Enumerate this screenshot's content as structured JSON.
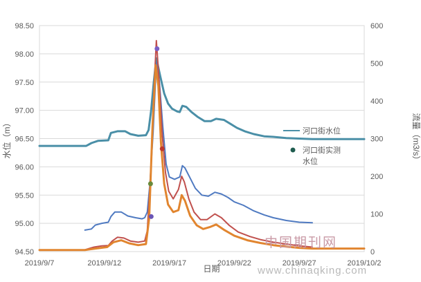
{
  "chart_data": {
    "type": "line",
    "title": "",
    "xlabel": "日期",
    "ylabel_left": "水位（m）",
    "ylabel_right": "流量（m3/s）",
    "xlim": [
      "2019-09-07",
      "2019-10-02"
    ],
    "x_tick_labels": [
      "2019/9/7",
      "2019/9/12",
      "2019/9/17",
      "2019/9/22",
      "2019/9/27",
      "2019/10/2"
    ],
    "y_left": {
      "range": [
        94.5,
        98.5
      ],
      "ticks": [
        "94.50",
        "95.00",
        "95.50",
        "96.00",
        "96.50",
        "97.00",
        "97.50",
        "98.00",
        "98.50"
      ]
    },
    "y_right": {
      "range": [
        0,
        600
      ],
      "ticks": [
        "0",
        "100",
        "200",
        "300",
        "400",
        "500",
        "600"
      ]
    },
    "grid": "horizontal",
    "legend": {
      "placement": "right",
      "items": [
        {
          "label": "河口街水位",
          "marker": "line",
          "color": "#4a8fa7"
        },
        {
          "label_lines": [
            "河口街实测",
            "水位"
          ],
          "marker": "dot",
          "color": "#1f5c4f"
        }
      ]
    },
    "series": [
      {
        "name": "河口街水位",
        "color": "#4a8fa7",
        "axis": "left",
        "width": 3,
        "points": [
          [
            "2019-09-07",
            96.37
          ],
          [
            "2019-09-10",
            96.37
          ],
          [
            "2019-09-10.6",
            96.37
          ],
          [
            "2019-09-11",
            96.42
          ],
          [
            "2019-09-11.5",
            96.46
          ],
          [
            "2019-09-12.3",
            96.47
          ],
          [
            "2019-09-12.5",
            96.6
          ],
          [
            "2019-09-13",
            96.63
          ],
          [
            "2019-09-13.6",
            96.63
          ],
          [
            "2019-09-14",
            96.58
          ],
          [
            "2019-09-14.6",
            96.55
          ],
          [
            "2019-09-15.2",
            96.56
          ],
          [
            "2019-09-15.4",
            96.65
          ],
          [
            "2019-09-15.6",
            97.0
          ],
          [
            "2019-09-15.8",
            97.5
          ],
          [
            "2019-09-16",
            97.92
          ],
          [
            "2019-09-16.3",
            97.6
          ],
          [
            "2019-09-16.6",
            97.3
          ],
          [
            "2019-09-16.9",
            97.12
          ],
          [
            "2019-09-17.2",
            97.03
          ],
          [
            "2019-09-17.6",
            96.98
          ],
          [
            "2019-09-17.8",
            96.97
          ],
          [
            "2019-09-18",
            97.08
          ],
          [
            "2019-09-18.3",
            97.06
          ],
          [
            "2019-09-18.7",
            96.97
          ],
          [
            "2019-09-19.2",
            96.88
          ],
          [
            "2019-09-19.7",
            96.81
          ],
          [
            "2019-09-20.2",
            96.81
          ],
          [
            "2019-09-20.6",
            96.85
          ],
          [
            "2019-09-21.2",
            96.83
          ],
          [
            "2019-09-21.7",
            96.76
          ],
          [
            "2019-09-22.2",
            96.69
          ],
          [
            "2019-09-22.8",
            96.63
          ],
          [
            "2019-09-23.5",
            96.58
          ],
          [
            "2019-09-24.3",
            96.54
          ],
          [
            "2019-09-25",
            96.53
          ],
          [
            "2019-09-26",
            96.51
          ],
          [
            "2019-09-27",
            96.5
          ],
          [
            "2019-09-28",
            96.49
          ],
          [
            "2019-10-02",
            96.49
          ]
        ]
      },
      {
        "name": "",
        "color": "#4f7ac1",
        "axis": "left",
        "width": 2,
        "points": [
          [
            "2019-09-10.5",
            94.88
          ],
          [
            "2019-09-11",
            94.9
          ],
          [
            "2019-09-11.3",
            94.97
          ],
          [
            "2019-09-11.8",
            95.0
          ],
          [
            "2019-09-12.3",
            95.02
          ],
          [
            "2019-09-12.5",
            95.12
          ],
          [
            "2019-09-12.8",
            95.2
          ],
          [
            "2019-09-13.3",
            95.2
          ],
          [
            "2019-09-13.8",
            95.13
          ],
          [
            "2019-09-14.4",
            95.1
          ],
          [
            "2019-09-14.9",
            95.08
          ],
          [
            "2019-09-15.1",
            95.1
          ],
          [
            "2019-09-15.3",
            95.2
          ],
          [
            "2019-09-15.5",
            95.7
          ],
          [
            "2019-09-15.75",
            96.6
          ],
          [
            "2019-09-15.95",
            97.6
          ],
          [
            "2019-09-16.05",
            97.85
          ],
          [
            "2019-09-16.25",
            97.45
          ],
          [
            "2019-09-16.5",
            96.7
          ],
          [
            "2019-09-16.75",
            96.05
          ],
          [
            "2019-09-17",
            95.82
          ],
          [
            "2019-09-17.4",
            95.78
          ],
          [
            "2019-09-17.8",
            95.82
          ],
          [
            "2019-09-18",
            96.02
          ],
          [
            "2019-09-18.2",
            95.98
          ],
          [
            "2019-09-18.6",
            95.8
          ],
          [
            "2019-09-19",
            95.62
          ],
          [
            "2019-09-19.5",
            95.5
          ],
          [
            "2019-09-20",
            95.48
          ],
          [
            "2019-09-20.5",
            95.55
          ],
          [
            "2019-09-21",
            95.52
          ],
          [
            "2019-09-21.5",
            95.46
          ],
          [
            "2019-09-22",
            95.38
          ],
          [
            "2019-09-22.7",
            95.32
          ],
          [
            "2019-09-23.5",
            95.22
          ],
          [
            "2019-09-24.3",
            95.15
          ],
          [
            "2019-09-25",
            95.1
          ],
          [
            "2019-09-26",
            95.05
          ],
          [
            "2019-09-27",
            95.02
          ],
          [
            "2019-09-28",
            95.01
          ]
        ]
      },
      {
        "name": "",
        "color": "#c0504d",
        "axis": "right",
        "width": 2,
        "points": [
          [
            "2019-09-10.5",
            5
          ],
          [
            "2019-09-11.2",
            12
          ],
          [
            "2019-09-11.8",
            15
          ],
          [
            "2019-09-12.3",
            16
          ],
          [
            "2019-09-12.6",
            28
          ],
          [
            "2019-09-13",
            38
          ],
          [
            "2019-09-13.5",
            36
          ],
          [
            "2019-09-14",
            28
          ],
          [
            "2019-09-14.6",
            25
          ],
          [
            "2019-09-15.1",
            28
          ],
          [
            "2019-09-15.3",
            55
          ],
          [
            "2019-09-15.55",
            200
          ],
          [
            "2019-09-15.8",
            420
          ],
          [
            "2019-09-16",
            560
          ],
          [
            "2019-09-16.2",
            460
          ],
          [
            "2019-09-16.45",
            310
          ],
          [
            "2019-09-16.7",
            210
          ],
          [
            "2019-09-16.95",
            160
          ],
          [
            "2019-09-17.3",
            140
          ],
          [
            "2019-09-17.7",
            165
          ],
          [
            "2019-09-17.95",
            200
          ],
          [
            "2019-09-18.15",
            185
          ],
          [
            "2019-09-18.5",
            140
          ],
          [
            "2019-09-18.9",
            105
          ],
          [
            "2019-09-19.4",
            85
          ],
          [
            "2019-09-19.9",
            85
          ],
          [
            "2019-09-20.5",
            100
          ],
          [
            "2019-09-21",
            90
          ],
          [
            "2019-09-21.6",
            70
          ],
          [
            "2019-09-22.3",
            52
          ],
          [
            "2019-09-23.2",
            40
          ],
          [
            "2019-09-24",
            32
          ],
          [
            "2019-09-25",
            25
          ],
          [
            "2019-09-26",
            20
          ],
          [
            "2019-09-27",
            15
          ],
          [
            "2019-09-28",
            12
          ]
        ]
      },
      {
        "name": "",
        "color": "#e1852f",
        "axis": "right",
        "width": 3,
        "points": [
          [
            "2019-09-07",
            4
          ],
          [
            "2019-09-10.5",
            4
          ],
          [
            "2019-09-11.3",
            8
          ],
          [
            "2019-09-12.2",
            12
          ],
          [
            "2019-09-12.7",
            25
          ],
          [
            "2019-09-13.3",
            30
          ],
          [
            "2019-09-13.9",
            22
          ],
          [
            "2019-09-14.6",
            17
          ],
          [
            "2019-09-15.2",
            20
          ],
          [
            "2019-09-15.45",
            90
          ],
          [
            "2019-09-15.7",
            330
          ],
          [
            "2019-09-15.95",
            495
          ],
          [
            "2019-09-16.15",
            440
          ],
          [
            "2019-09-16.35",
            290
          ],
          [
            "2019-09-16.6",
            180
          ],
          [
            "2019-09-16.9",
            125
          ],
          [
            "2019-09-17.3",
            105
          ],
          [
            "2019-09-17.7",
            110
          ],
          [
            "2019-09-17.95",
            150
          ],
          [
            "2019-09-18.2",
            135
          ],
          [
            "2019-09-18.6",
            95
          ],
          [
            "2019-09-19.1",
            70
          ],
          [
            "2019-09-19.6",
            60
          ],
          [
            "2019-09-20.1",
            65
          ],
          [
            "2019-09-20.6",
            72
          ],
          [
            "2019-09-21.2",
            58
          ],
          [
            "2019-09-22",
            42
          ],
          [
            "2019-09-23",
            30
          ],
          [
            "2019-09-24",
            23
          ],
          [
            "2019-09-25",
            17
          ],
          [
            "2019-09-26",
            13
          ],
          [
            "2019-09-27",
            10
          ],
          [
            "2019-09-28",
            8
          ],
          [
            "2019-10-02",
            8
          ]
        ]
      }
    ],
    "measured_points": [
      {
        "x": "2019-09-15.6",
        "axis": "left",
        "y": 95.12,
        "color": "#6a55b5"
      },
      {
        "x": "2019-09-15.55",
        "axis": "left",
        "y": 95.7,
        "color": "#6a8a3a"
      },
      {
        "x": "2019-09-16.05",
        "axis": "left",
        "y": 98.09,
        "color": "#7a5fc4"
      },
      {
        "x": "2019-09-16.45",
        "axis": "left",
        "y": 96.32,
        "color": "#c0392b"
      }
    ]
  },
  "watermark": {
    "cn": "中国期刊网",
    "url": "www.chinaqking.com"
  }
}
